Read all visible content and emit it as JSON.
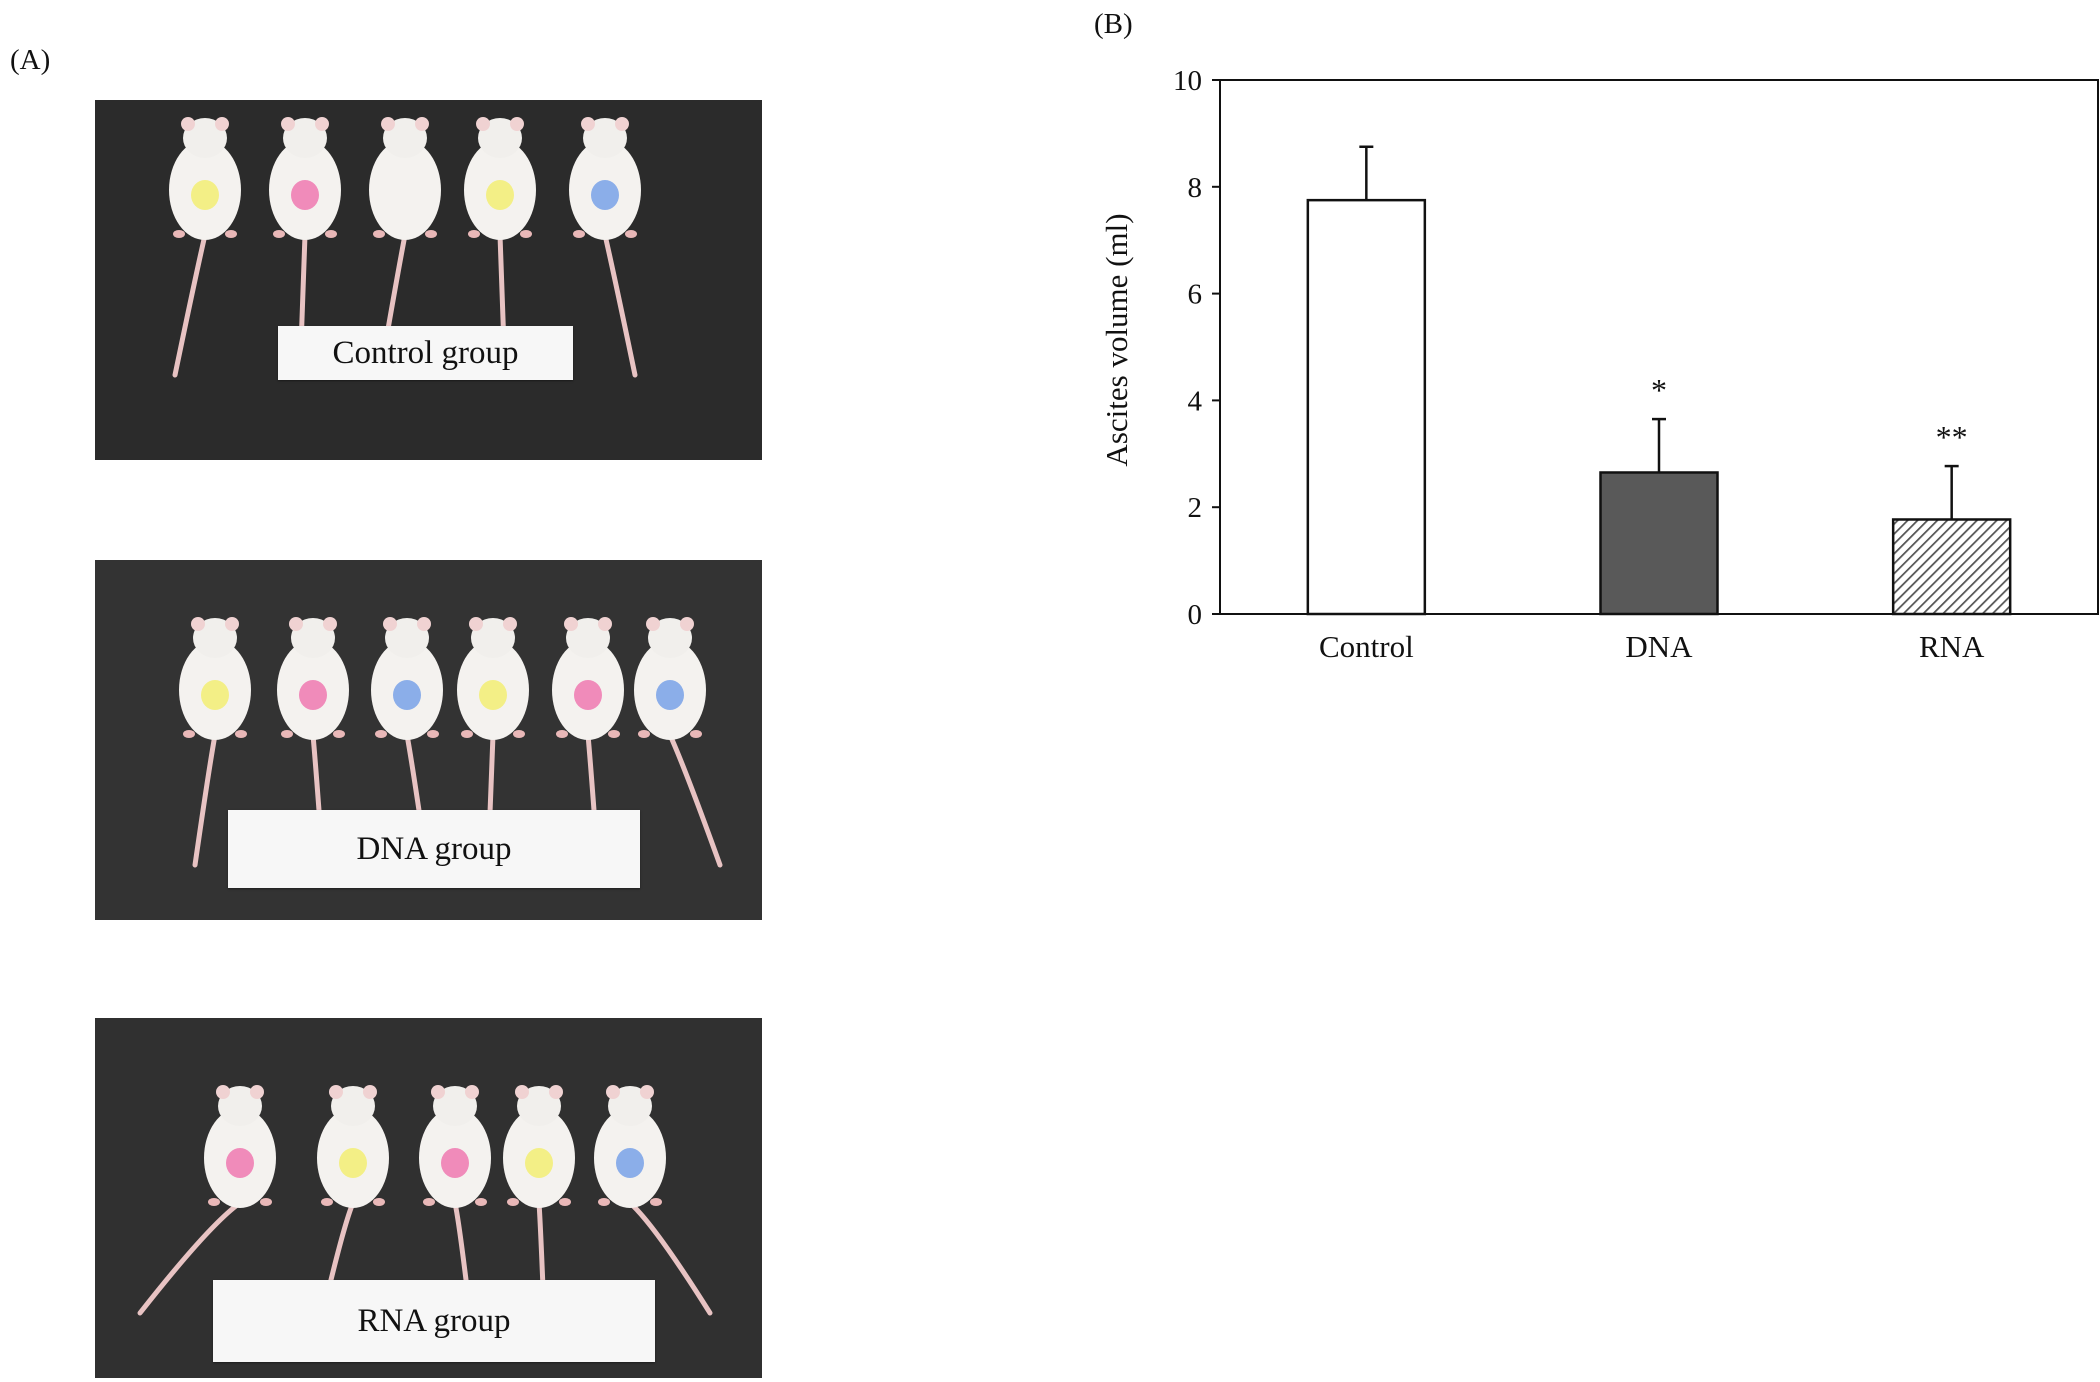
{
  "panels": {
    "a_label": "(A)",
    "b_label": "(B)"
  },
  "photos": [
    {
      "group_label": "Control group",
      "mice_count": 5,
      "marks": [
        "yellow",
        "pink",
        "none",
        "yellow",
        "blue"
      ]
    },
    {
      "group_label": "DNA group",
      "mice_count": 6,
      "marks": [
        "yellow",
        "pink",
        "blue",
        "yellow",
        "pink",
        "blue"
      ]
    },
    {
      "group_label": "RNA group",
      "mice_count": 5,
      "marks": [
        "pink",
        "yellow",
        "pink",
        "yellow",
        "blue"
      ]
    }
  ],
  "colors": {
    "mark_yellow": "#f3ee7a",
    "mark_pink": "#f07fb4",
    "mark_blue": "#7fa6e8",
    "control_bar": "#ffffff",
    "dna_bar": "#595959",
    "rna_bar_hatch": "#555555"
  },
  "chart_data": {
    "type": "bar",
    "categories": [
      "Control",
      "DNA",
      "RNA"
    ],
    "values": [
      7.75,
      2.65,
      1.77
    ],
    "errors": [
      1.0,
      1.0,
      1.0
    ],
    "significance": [
      "",
      "*",
      "**"
    ],
    "fills": [
      "white",
      "dark-gray",
      "hatched"
    ],
    "ylabel": "Ascites volume (ml)",
    "xlabel": "",
    "ylim": [
      0,
      10
    ],
    "yticks": [
      "0",
      "2",
      "4",
      "6",
      "8",
      "10"
    ],
    "grid": false,
    "legend": "none"
  }
}
